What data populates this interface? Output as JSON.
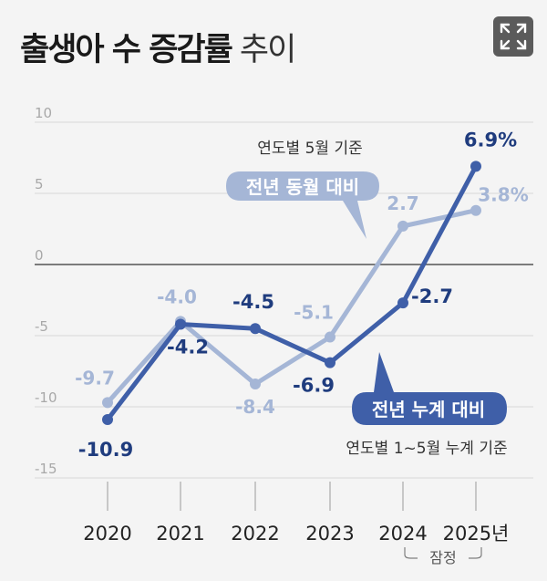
{
  "title": {
    "bold": "출생아 수 증감률",
    "light": "추이"
  },
  "expand_icon": "expand-icon",
  "chart_data": {
    "type": "line",
    "title": "출생아 수 증감률 추이",
    "categories": [
      "2020",
      "2021",
      "2022",
      "2023",
      "2024",
      "2025년"
    ],
    "category_note": "잠정",
    "y_ticks": [
      "10",
      "5",
      "0",
      "-5",
      "-10",
      "-15"
    ],
    "ylim": [
      -15,
      10
    ],
    "grid": true,
    "series": [
      {
        "name": "전년 동월 대비",
        "note": "연도별 5월 기준",
        "color": "#a5b6d6",
        "values": [
          -9.7,
          -4.0,
          -8.4,
          -5.1,
          2.7,
          3.8
        ],
        "labels": [
          "-9.7",
          "-4.0",
          "-8.4",
          "-5.1",
          "2.7",
          "3.8%"
        ]
      },
      {
        "name": "전년 누계 대비",
        "note": "연도별 1~5월 누계 기준",
        "color": "#3f5fa8",
        "values": [
          -10.9,
          -4.2,
          -4.5,
          -6.9,
          -2.7,
          6.9
        ],
        "labels": [
          "-10.9",
          "-4.2",
          "-4.5",
          "-6.9",
          "-2.7",
          "6.9%"
        ]
      }
    ]
  }
}
